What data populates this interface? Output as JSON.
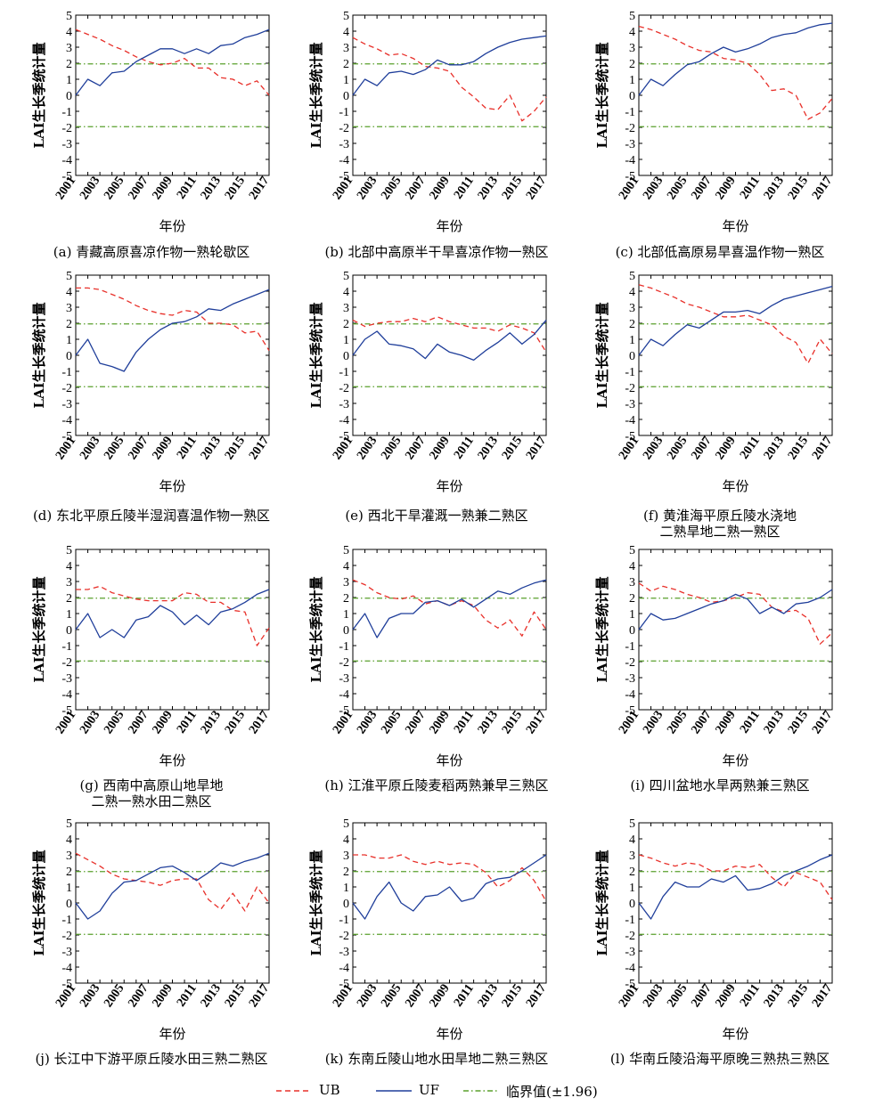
{
  "legend": {
    "ub_label": "UB",
    "uf_label": "UF",
    "crit_label": "临界值(±1.96)"
  },
  "colors": {
    "ub": "#e8302a",
    "uf": "#1f3e9a",
    "critical": "#5aa02c",
    "axis": "#000000"
  },
  "chart_data": [
    {
      "type": "line",
      "panel": "a",
      "caption": [
        "(a) 青藏高原喜凉作物一熟轮歇区"
      ],
      "xlabel": "年份",
      "ylabel": "LAI生长季统计量",
      "x": [
        2001,
        2002,
        2003,
        2004,
        2005,
        2006,
        2007,
        2008,
        2009,
        2010,
        2011,
        2012,
        2013,
        2014,
        2015,
        2016,
        2017
      ],
      "xticks": [
        "2001",
        "2003",
        "2005",
        "2007",
        "2009",
        "2011",
        "2013",
        "2015",
        "2017"
      ],
      "ylim": [
        -5,
        5
      ],
      "critical": [
        1.96,
        -1.96
      ],
      "series": [
        {
          "name": "UB",
          "values": [
            4.1,
            3.8,
            3.5,
            3.1,
            2.8,
            2.4,
            2.1,
            1.9,
            2.0,
            2.3,
            1.7,
            1.7,
            1.1,
            1.0,
            0.6,
            0.9,
            0.0
          ]
        },
        {
          "name": "UF",
          "values": [
            0.0,
            1.0,
            0.6,
            1.4,
            1.5,
            2.1,
            2.5,
            2.9,
            2.9,
            2.6,
            2.9,
            2.6,
            3.1,
            3.2,
            3.6,
            3.8,
            4.1
          ]
        }
      ]
    },
    {
      "type": "line",
      "panel": "b",
      "caption": [
        "(b) 北部中高原半干旱喜凉作物一熟区"
      ],
      "xlabel": "年份",
      "ylabel": "LAI生长季统计量",
      "x": [
        2001,
        2002,
        2003,
        2004,
        2005,
        2006,
        2007,
        2008,
        2009,
        2010,
        2011,
        2012,
        2013,
        2014,
        2015,
        2016,
        2017
      ],
      "xticks": [
        "2001",
        "2003",
        "2005",
        "2007",
        "2009",
        "2011",
        "2013",
        "2015",
        "2017"
      ],
      "ylim": [
        -5,
        5
      ],
      "critical": [
        1.96,
        -1.96
      ],
      "series": [
        {
          "name": "UB",
          "values": [
            3.6,
            3.2,
            2.9,
            2.5,
            2.6,
            2.3,
            1.8,
            1.7,
            1.5,
            0.5,
            -0.1,
            -0.8,
            -0.9,
            0.0,
            -1.6,
            -1.0,
            -0.1
          ]
        },
        {
          "name": "UF",
          "values": [
            0.0,
            1.0,
            0.6,
            1.4,
            1.5,
            1.3,
            1.6,
            2.2,
            1.9,
            1.9,
            2.1,
            2.6,
            3.0,
            3.3,
            3.5,
            3.6,
            3.7
          ]
        }
      ]
    },
    {
      "type": "line",
      "panel": "c",
      "caption": [
        "(c) 北部低高原易旱喜温作物一熟区"
      ],
      "xlabel": "年份",
      "ylabel": "LAI生长季统计量",
      "x": [
        2001,
        2002,
        2003,
        2004,
        2005,
        2006,
        2007,
        2008,
        2009,
        2010,
        2011,
        2012,
        2013,
        2014,
        2015,
        2016,
        2017
      ],
      "xticks": [
        "2001",
        "2003",
        "2005",
        "2007",
        "2009",
        "2011",
        "2013",
        "2015",
        "2017"
      ],
      "ylim": [
        -5,
        5
      ],
      "critical": [
        1.96,
        -1.96
      ],
      "series": [
        {
          "name": "UB",
          "values": [
            4.3,
            4.1,
            3.8,
            3.5,
            3.1,
            2.8,
            2.7,
            2.3,
            2.2,
            2.0,
            1.3,
            0.3,
            0.4,
            0.0,
            -1.5,
            -1.1,
            -0.2
          ]
        },
        {
          "name": "UF",
          "values": [
            0.0,
            1.0,
            0.6,
            1.3,
            1.9,
            2.1,
            2.6,
            3.0,
            2.7,
            2.9,
            3.2,
            3.6,
            3.8,
            3.9,
            4.2,
            4.4,
            4.5
          ]
        }
      ]
    },
    {
      "type": "line",
      "panel": "d",
      "caption": [
        "(d) 东北平原丘陵半湿润喜温作物一熟区"
      ],
      "xlabel": "年份",
      "ylabel": "LAI生长季统计量",
      "x": [
        2001,
        2002,
        2003,
        2004,
        2005,
        2006,
        2007,
        2008,
        2009,
        2010,
        2011,
        2012,
        2013,
        2014,
        2015,
        2016,
        2017
      ],
      "xticks": [
        "2001",
        "2003",
        "2005",
        "2007",
        "2009",
        "2011",
        "2013",
        "2015",
        "2017"
      ],
      "ylim": [
        -5,
        5
      ],
      "critical": [
        1.96,
        -1.96
      ],
      "series": [
        {
          "name": "UB",
          "values": [
            4.2,
            4.2,
            4.1,
            3.8,
            3.5,
            3.1,
            2.8,
            2.6,
            2.5,
            2.8,
            2.7,
            2.0,
            2.0,
            1.9,
            1.4,
            1.5,
            0.3
          ]
        },
        {
          "name": "UF",
          "values": [
            0.0,
            1.0,
            -0.5,
            -0.7,
            -1.0,
            0.2,
            1.0,
            1.6,
            2.0,
            2.1,
            2.4,
            2.9,
            2.8,
            3.2,
            3.5,
            3.8,
            4.1
          ]
        }
      ]
    },
    {
      "type": "line",
      "panel": "e",
      "caption": [
        "(e) 西北干旱灌溉一熟兼二熟区"
      ],
      "xlabel": "年份",
      "ylabel": "LAI生长季统计量",
      "x": [
        2001,
        2002,
        2003,
        2004,
        2005,
        2006,
        2007,
        2008,
        2009,
        2010,
        2011,
        2012,
        2013,
        2014,
        2015,
        2016,
        2017
      ],
      "xticks": [
        "2001",
        "2003",
        "2005",
        "2007",
        "2009",
        "2011",
        "2013",
        "2015",
        "2017"
      ],
      "ylim": [
        -5,
        5
      ],
      "critical": [
        1.96,
        -1.96
      ],
      "series": [
        {
          "name": "UB",
          "values": [
            2.2,
            1.8,
            2.0,
            2.1,
            2.1,
            2.3,
            2.1,
            2.4,
            2.1,
            1.9,
            1.7,
            1.7,
            1.5,
            1.9,
            1.7,
            1.4,
            0.2
          ]
        },
        {
          "name": "UF",
          "values": [
            0.0,
            1.0,
            1.5,
            0.7,
            0.6,
            0.4,
            -0.2,
            0.7,
            0.2,
            0.0,
            -0.3,
            0.3,
            0.8,
            1.4,
            0.7,
            1.3,
            2.2
          ]
        }
      ]
    },
    {
      "type": "line",
      "panel": "f",
      "caption": [
        "(f) 黄淮海平原丘陵水浇地",
        "二熟旱地二熟一熟区"
      ],
      "xlabel": "年份",
      "ylabel": "LAI生长季统计量",
      "x": [
        2001,
        2002,
        2003,
        2004,
        2005,
        2006,
        2007,
        2008,
        2009,
        2010,
        2011,
        2012,
        2013,
        2014,
        2015,
        2016,
        2017
      ],
      "xticks": [
        "2001",
        "2003",
        "2005",
        "2007",
        "2009",
        "2011",
        "2013",
        "2015",
        "2017"
      ],
      "ylim": [
        -5,
        5
      ],
      "critical": [
        1.96,
        -1.96
      ],
      "series": [
        {
          "name": "UB",
          "values": [
            4.4,
            4.2,
            3.9,
            3.6,
            3.2,
            3.0,
            2.7,
            2.4,
            2.4,
            2.5,
            2.2,
            1.9,
            1.2,
            0.8,
            -0.5,
            1.0,
            0.1
          ]
        },
        {
          "name": "UF",
          "values": [
            0.0,
            1.0,
            0.6,
            1.3,
            1.9,
            1.7,
            2.2,
            2.7,
            2.7,
            2.8,
            2.6,
            3.1,
            3.5,
            3.7,
            3.9,
            4.1,
            4.3
          ]
        }
      ]
    },
    {
      "type": "line",
      "panel": "g",
      "caption": [
        "(g) 西南中高原山地旱地",
        "二熟一熟水田二熟区"
      ],
      "xlabel": "年份",
      "ylabel": "LAI生长季统计量",
      "x": [
        2001,
        2002,
        2003,
        2004,
        2005,
        2006,
        2007,
        2008,
        2009,
        2010,
        2011,
        2012,
        2013,
        2014,
        2015,
        2016,
        2017
      ],
      "xticks": [
        "2001",
        "2003",
        "2005",
        "2007",
        "2009",
        "2011",
        "2013",
        "2015",
        "2017"
      ],
      "ylim": [
        -5,
        5
      ],
      "critical": [
        1.96,
        -1.96
      ],
      "series": [
        {
          "name": "UB",
          "values": [
            2.5,
            2.5,
            2.7,
            2.3,
            2.1,
            1.9,
            1.8,
            1.8,
            1.8,
            2.3,
            2.2,
            1.7,
            1.7,
            1.2,
            1.1,
            -1.0,
            0.1
          ]
        },
        {
          "name": "UF",
          "values": [
            0.0,
            1.0,
            -0.5,
            0.0,
            -0.5,
            0.6,
            0.8,
            1.5,
            1.1,
            0.3,
            0.9,
            0.3,
            1.1,
            1.3,
            1.7,
            2.2,
            2.5
          ]
        }
      ]
    },
    {
      "type": "line",
      "panel": "h",
      "caption": [
        "(h) 江淮平原丘陵麦稻两熟兼早三熟区"
      ],
      "xlabel": "年份",
      "ylabel": "LAI生长季统计量",
      "x": [
        2001,
        2002,
        2003,
        2004,
        2005,
        2006,
        2007,
        2008,
        2009,
        2010,
        2011,
        2012,
        2013,
        2014,
        2015,
        2016,
        2017
      ],
      "xticks": [
        "2001",
        "2003",
        "2005",
        "2007",
        "2009",
        "2011",
        "2013",
        "2015",
        "2017"
      ],
      "ylim": [
        -5,
        5
      ],
      "critical": [
        1.96,
        -1.96
      ],
      "series": [
        {
          "name": "UB",
          "values": [
            3.1,
            2.8,
            2.3,
            2.0,
            1.9,
            2.1,
            1.6,
            1.8,
            1.5,
            1.8,
            1.5,
            0.6,
            0.1,
            0.6,
            -0.4,
            1.1,
            0.0
          ]
        },
        {
          "name": "UF",
          "values": [
            0.0,
            1.0,
            -0.5,
            0.7,
            1.0,
            1.0,
            1.7,
            1.8,
            1.5,
            1.9,
            1.4,
            1.9,
            2.4,
            2.2,
            2.6,
            2.9,
            3.1
          ]
        }
      ]
    },
    {
      "type": "line",
      "panel": "i",
      "caption": [
        "(i) 四川盆地水旱两熟兼三熟区"
      ],
      "xlabel": "年份",
      "ylabel": "LAI生长季统计量",
      "x": [
        2001,
        2002,
        2003,
        2004,
        2005,
        2006,
        2007,
        2008,
        2009,
        2010,
        2011,
        2012,
        2013,
        2014,
        2015,
        2016,
        2017
      ],
      "xticks": [
        "2001",
        "2003",
        "2005",
        "2007",
        "2009",
        "2011",
        "2013",
        "2015",
        "2017"
      ],
      "ylim": [
        -5,
        5
      ],
      "critical": [
        1.96,
        -1.96
      ],
      "series": [
        {
          "name": "UB",
          "values": [
            2.9,
            2.4,
            2.7,
            2.5,
            2.2,
            2.0,
            1.7,
            1.8,
            2.0,
            2.3,
            2.2,
            1.4,
            1.1,
            1.2,
            0.7,
            -0.9,
            -0.2
          ]
        },
        {
          "name": "UF",
          "values": [
            0.0,
            1.0,
            0.6,
            0.7,
            1.0,
            1.3,
            1.6,
            1.8,
            2.2,
            1.9,
            1.0,
            1.4,
            1.0,
            1.6,
            1.7,
            2.0,
            2.5
          ]
        }
      ]
    },
    {
      "type": "line",
      "panel": "j",
      "caption": [
        "(j) 长江中下游平原丘陵水田三熟二熟区"
      ],
      "xlabel": "年份",
      "ylabel": "LAI生长季统计量",
      "x": [
        2001,
        2002,
        2003,
        2004,
        2005,
        2006,
        2007,
        2008,
        2009,
        2010,
        2011,
        2012,
        2013,
        2014,
        2015,
        2016,
        2017
      ],
      "xticks": [
        "2001",
        "2003",
        "2005",
        "2007",
        "2009",
        "2011",
        "2013",
        "2015",
        "2017"
      ],
      "ylim": [
        -5,
        5
      ],
      "critical": [
        1.96,
        -1.96
      ],
      "series": [
        {
          "name": "UB",
          "values": [
            3.1,
            2.7,
            2.3,
            1.8,
            1.5,
            1.4,
            1.3,
            1.1,
            1.4,
            1.5,
            1.5,
            0.2,
            -0.4,
            0.6,
            -0.5,
            1.0,
            0.0
          ]
        },
        {
          "name": "UF",
          "values": [
            0.0,
            -1.0,
            -0.5,
            0.6,
            1.3,
            1.4,
            1.8,
            2.2,
            2.3,
            1.9,
            1.4,
            1.9,
            2.5,
            2.3,
            2.6,
            2.8,
            3.1
          ]
        }
      ]
    },
    {
      "type": "line",
      "panel": "k",
      "caption": [
        "(k) 东南丘陵山地水田旱地二熟三熟区"
      ],
      "xlabel": "年份",
      "ylabel": "LAI生长季统计量",
      "x": [
        2001,
        2002,
        2003,
        2004,
        2005,
        2006,
        2007,
        2008,
        2009,
        2010,
        2011,
        2012,
        2013,
        2014,
        2015,
        2016,
        2017
      ],
      "xticks": [
        "2001",
        "2003",
        "2005",
        "2007",
        "2009",
        "2011",
        "2013",
        "2015",
        "2017"
      ],
      "ylim": [
        -5,
        5
      ],
      "critical": [
        1.96,
        -1.96
      ],
      "series": [
        {
          "name": "UB",
          "values": [
            3.0,
            3.0,
            2.8,
            2.8,
            3.0,
            2.6,
            2.4,
            2.6,
            2.4,
            2.5,
            2.4,
            1.9,
            1.0,
            1.4,
            2.2,
            1.4,
            0.1
          ]
        },
        {
          "name": "UF",
          "values": [
            0.0,
            -1.0,
            0.4,
            1.3,
            0.0,
            -0.5,
            0.4,
            0.5,
            1.0,
            0.1,
            0.3,
            1.2,
            1.5,
            1.6,
            2.0,
            2.5,
            3.0
          ]
        }
      ]
    },
    {
      "type": "line",
      "panel": "l",
      "caption": [
        "(l) 华南丘陵沿海平原晚三熟热三熟区"
      ],
      "xlabel": "年份",
      "ylabel": "LAI生长季统计量",
      "x": [
        2001,
        2002,
        2003,
        2004,
        2005,
        2006,
        2007,
        2008,
        2009,
        2010,
        2011,
        2012,
        2013,
        2014,
        2015,
        2016,
        2017
      ],
      "xticks": [
        "2001",
        "2003",
        "2005",
        "2007",
        "2009",
        "2011",
        "2013",
        "2015",
        "2017"
      ],
      "ylim": [
        -5,
        5
      ],
      "critical": [
        1.96,
        -1.96
      ],
      "series": [
        {
          "name": "UB",
          "values": [
            3.0,
            2.8,
            2.5,
            2.3,
            2.5,
            2.4,
            2.0,
            2.0,
            2.3,
            2.2,
            2.4,
            1.6,
            1.0,
            1.9,
            1.6,
            1.3,
            0.2
          ]
        },
        {
          "name": "UF",
          "values": [
            0.0,
            -1.0,
            0.4,
            1.3,
            1.0,
            1.0,
            1.5,
            1.3,
            1.7,
            0.8,
            0.9,
            1.2,
            1.7,
            2.0,
            2.3,
            2.7,
            3.0
          ]
        }
      ]
    }
  ]
}
